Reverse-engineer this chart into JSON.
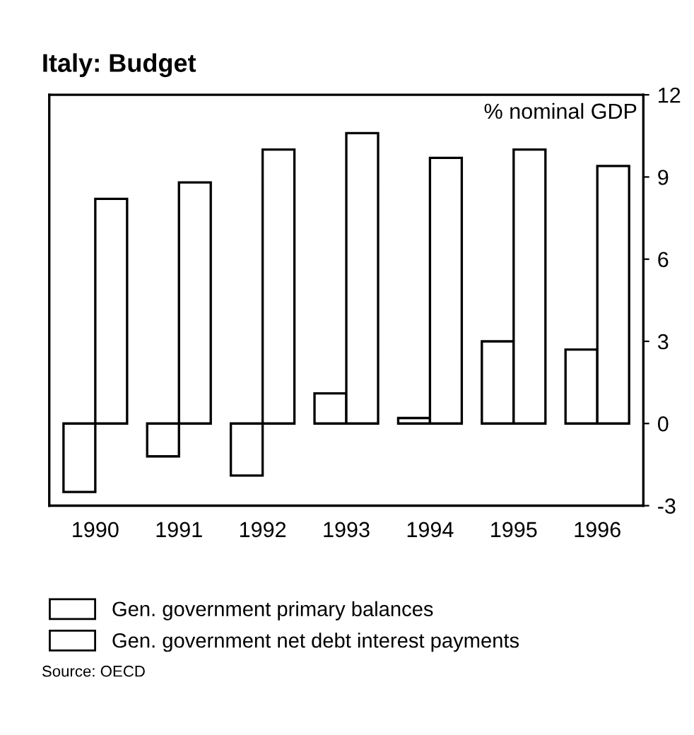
{
  "chart_data": {
    "type": "bar",
    "title": "Italy: Budget",
    "categories": [
      "1990",
      "1991",
      "1992",
      "1993",
      "1994",
      "1995",
      "1996"
    ],
    "series": [
      {
        "name": "Gen. government primary balances",
        "color": "#ffffff",
        "values": [
          -2.5,
          -1.2,
          -1.9,
          1.1,
          0.2,
          3.0,
          2.7
        ]
      },
      {
        "name": "Gen. government net debt interest payments",
        "color": "#ffffff",
        "values": [
          8.2,
          8.8,
          10.0,
          10.6,
          9.7,
          10.0,
          9.4
        ]
      }
    ],
    "ylim": [
      -3,
      12
    ],
    "yticks": [
      -3,
      0,
      3,
      6,
      9,
      12
    ],
    "grid": false,
    "legend": "bottom",
    "annotations": [
      "% nominal GDP",
      "Source: OECD"
    ]
  }
}
